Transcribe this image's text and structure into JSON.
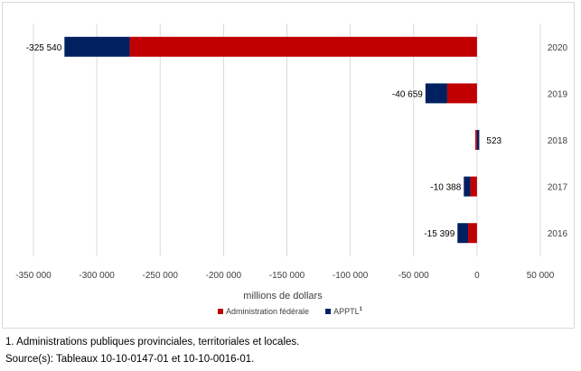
{
  "chart_data": {
    "type": "bar",
    "orientation": "horizontal",
    "stacked": true,
    "categories": [
      "2020",
      "2019",
      "2018",
      "2017",
      "2016"
    ],
    "series": [
      {
        "name": "Administration fédérale",
        "color": "#c00000",
        "values": [
          -274000,
          -23500,
          -1300,
          -5300,
          -7000
        ]
      },
      {
        "name": "APPTL",
        "color": "#002060",
        "values": [
          -51540,
          -17159,
          1823,
          -5088,
          -8399
        ]
      }
    ],
    "totals": [
      -325540,
      -40659,
      523,
      -10388,
      -15399
    ],
    "data_labels": [
      "-325 540",
      "-40 659",
      "523",
      "-10 388",
      "-15 399"
    ],
    "xlim": [
      -350000,
      50000
    ],
    "x_ticks": [
      -350000,
      -300000,
      -250000,
      -200000,
      -150000,
      -100000,
      -50000,
      0,
      50000
    ],
    "x_tick_labels": [
      "-350 000",
      "-300 000",
      "-250 000",
      "-200 000",
      "-150 000",
      "-100 000",
      "-50 000",
      "0",
      "50 000"
    ],
    "xlabel": "millions de dollars",
    "ylabel": "",
    "grid": "vertical",
    "legend": {
      "position": "bottom",
      "items": [
        {
          "label": "Administration fédérale",
          "color": "#c00000",
          "superscript": ""
        },
        {
          "label": "APPTL",
          "color": "#002060",
          "superscript": "1"
        }
      ]
    }
  },
  "footnote": "1. Administrations publiques provinciales, territoriales et locales.",
  "source": "Source(s): Tableaux 10-10-0147-01 et 10-10-0016-01."
}
